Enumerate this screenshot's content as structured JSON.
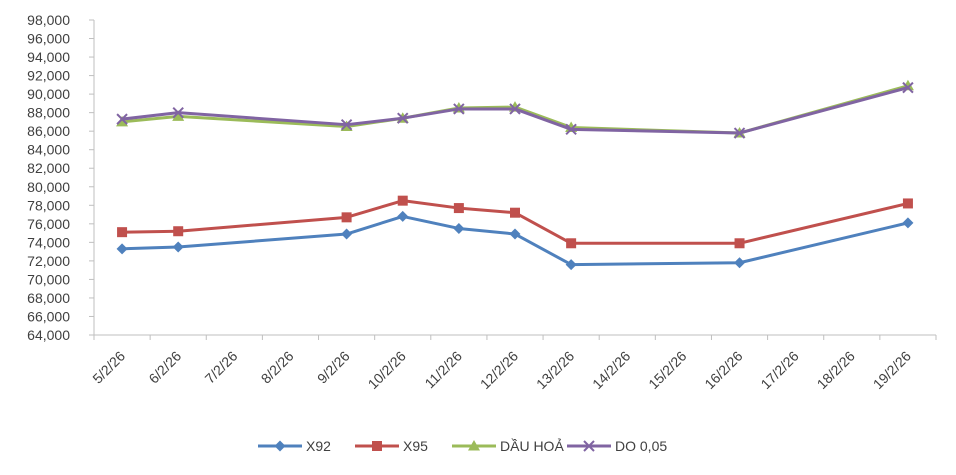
{
  "chart_data": {
    "type": "line",
    "categories": [
      "5/2/26",
      "6/2/26",
      "7/2/26",
      "8/2/26",
      "9/2/26",
      "10/2/26",
      "11/2/26",
      "12/2/26",
      "13/2/26",
      "14/2/26",
      "15/2/26",
      "16/2/26",
      "17/2/26",
      "18/2/26",
      "19/2/26"
    ],
    "ylim": [
      64000,
      98000
    ],
    "y_step": 2000,
    "y_ticks": [
      "64,000",
      "66,000",
      "68,000",
      "70,000",
      "72,000",
      "74,000",
      "76,000",
      "78,000",
      "80,000",
      "82,000",
      "84,000",
      "86,000",
      "88,000",
      "90,000",
      "92,000",
      "94,000",
      "96,000",
      "98,000"
    ],
    "grid": false,
    "legend_position": "bottom",
    "series": [
      {
        "name": "X92",
        "color": "#4F81BD",
        "marker": "diamond",
        "points": [
          [
            0,
            73300
          ],
          [
            1,
            73500
          ],
          [
            4,
            74900
          ],
          [
            5,
            76800
          ],
          [
            6,
            75500
          ],
          [
            7,
            74900
          ],
          [
            8,
            71600
          ],
          [
            11,
            71800
          ],
          [
            14,
            76100
          ]
        ]
      },
      {
        "name": "X95",
        "color": "#C0504D",
        "marker": "square",
        "points": [
          [
            0,
            75100
          ],
          [
            1,
            75200
          ],
          [
            4,
            76700
          ],
          [
            5,
            78500
          ],
          [
            6,
            77700
          ],
          [
            7,
            77200
          ],
          [
            8,
            73900
          ],
          [
            11,
            73900
          ],
          [
            14,
            78200
          ]
        ]
      },
      {
        "name": "DẦU HOẢ",
        "color": "#9BBB59",
        "marker": "triangle",
        "points": [
          [
            0,
            87000
          ],
          [
            1,
            87600
          ],
          [
            4,
            86500
          ],
          [
            5,
            87400
          ],
          [
            6,
            88500
          ],
          [
            7,
            88600
          ],
          [
            8,
            86400
          ],
          [
            11,
            85800
          ],
          [
            14,
            90900
          ]
        ]
      },
      {
        "name": "DO 0,05",
        "color": "#8064A2",
        "marker": "x",
        "points": [
          [
            0,
            87300
          ],
          [
            1,
            88000
          ],
          [
            4,
            86700
          ],
          [
            5,
            87400
          ],
          [
            6,
            88400
          ],
          [
            7,
            88400
          ],
          [
            8,
            86200
          ],
          [
            11,
            85800
          ],
          [
            14,
            90700
          ]
        ]
      }
    ]
  }
}
